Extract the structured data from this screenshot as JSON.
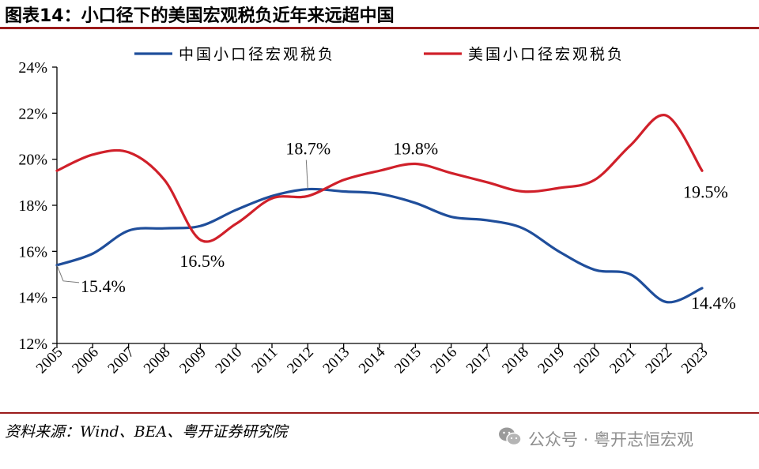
{
  "title": "图表14：小口径下的美国宏观税负近年来远超中国",
  "source": "资料来源：Wind、BEA、粤开证券研究院",
  "watermark": {
    "icon": "wechat-icon",
    "text": "公众号 · 粤开志恒宏观"
  },
  "chart_data": {
    "type": "line",
    "title": "",
    "xlabel": "",
    "ylabel": "",
    "x": [
      "2005",
      "2006",
      "2007",
      "2008",
      "2009",
      "2010",
      "2011",
      "2012",
      "2013",
      "2014",
      "2015",
      "2016",
      "2017",
      "2018",
      "2019",
      "2020",
      "2021",
      "2022",
      "2023"
    ],
    "ylim": [
      12,
      24
    ],
    "yticks": [
      12,
      14,
      16,
      18,
      20,
      22,
      24
    ],
    "ytick_labels": [
      "12%",
      "14%",
      "16%",
      "18%",
      "20%",
      "22%",
      "24%"
    ],
    "legend_position": "top",
    "grid": false,
    "series": [
      {
        "name": "中国小口径宏观税负",
        "color": "#1f4e9b",
        "values": [
          15.4,
          15.9,
          16.9,
          17.0,
          17.1,
          17.8,
          18.4,
          18.7,
          18.6,
          18.5,
          18.1,
          17.5,
          17.35,
          17.0,
          16.0,
          15.2,
          15.0,
          13.8,
          14.4
        ]
      },
      {
        "name": "美国小口径宏观税负",
        "color": "#d0202a",
        "values": [
          19.5,
          20.2,
          20.3,
          19.1,
          16.5,
          17.2,
          18.3,
          18.4,
          19.1,
          19.5,
          19.8,
          19.4,
          19.0,
          18.6,
          18.75,
          19.1,
          20.6,
          21.9,
          19.5
        ]
      }
    ],
    "annotations": [
      {
        "series": 0,
        "x": "2005",
        "text": "15.4%",
        "leader": true
      },
      {
        "series": 1,
        "x": "2009",
        "text": "16.5%",
        "leader": false
      },
      {
        "series": 0,
        "x": "2012",
        "text": "18.7%",
        "leader": true
      },
      {
        "series": 1,
        "x": "2015",
        "text": "19.8%",
        "leader": false
      },
      {
        "series": 1,
        "x": "2023",
        "text": "19.5%",
        "leader": false
      },
      {
        "series": 0,
        "x": "2023",
        "text": "14.4%",
        "leader": false
      }
    ]
  }
}
